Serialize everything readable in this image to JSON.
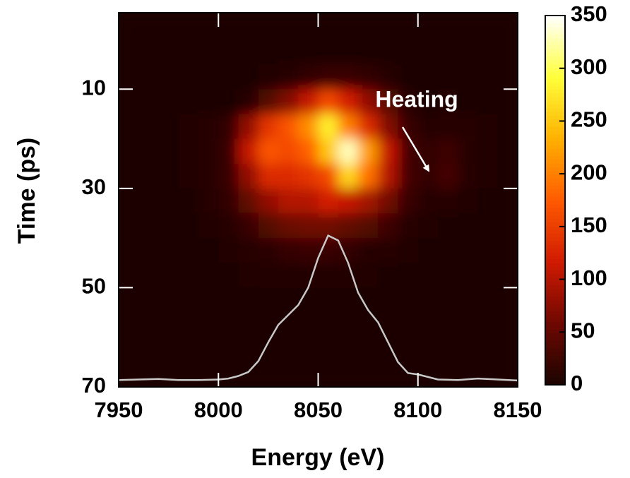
{
  "chart_data": {
    "type": "heatmap",
    "x_label": "Energy (eV)",
    "y_label": "Time (ps)",
    "annotation": "Heating",
    "xlim": [
      7950,
      8150
    ],
    "xticks": [
      7950,
      8000,
      8050,
      8100,
      8150
    ],
    "ylim": [
      -5.4,
      70
    ],
    "y_inverted": true,
    "yticks": [
      10,
      30,
      50,
      70
    ],
    "zlim": [
      0,
      350
    ],
    "zticks": [
      0,
      50,
      100,
      150,
      200,
      250,
      300,
      350
    ],
    "colors": [
      "#1a0400",
      "#6e0800",
      "#d01a00",
      "#ff5a00",
      "#ffb000",
      "#ffff3a",
      "#ffffff"
    ],
    "x_bins": [
      7950,
      7960,
      7970,
      7980,
      7990,
      8000,
      8010,
      8020,
      8030,
      8040,
      8050,
      8060,
      8070,
      8080,
      8090,
      8100,
      8110,
      8120,
      8130,
      8140,
      8150
    ],
    "y_bins": [
      -5,
      0,
      5,
      10,
      15,
      20,
      25,
      30,
      35,
      40,
      45,
      50,
      55,
      60,
      65,
      70
    ],
    "z": [
      [
        3,
        3,
        3,
        3,
        3,
        3,
        3,
        3,
        3,
        3,
        3,
        3,
        3,
        3,
        3,
        3,
        3,
        3,
        3,
        3
      ],
      [
        3,
        3,
        3,
        3,
        3,
        3,
        3,
        3,
        3,
        3,
        3,
        3,
        3,
        3,
        3,
        3,
        3,
        3,
        3,
        3
      ],
      [
        3,
        3,
        3,
        3,
        3,
        3,
        3,
        5,
        8,
        15,
        20,
        20,
        15,
        8,
        3,
        3,
        3,
        3,
        3,
        3
      ],
      [
        3,
        3,
        3,
        3,
        3,
        3,
        10,
        40,
        70,
        110,
        160,
        120,
        80,
        40,
        10,
        3,
        5,
        3,
        3,
        3
      ],
      [
        3,
        3,
        3,
        5,
        8,
        15,
        80,
        140,
        170,
        210,
        280,
        200,
        130,
        70,
        20,
        8,
        10,
        8,
        5,
        3
      ],
      [
        3,
        3,
        3,
        5,
        10,
        20,
        110,
        170,
        160,
        180,
        250,
        330,
        220,
        110,
        30,
        15,
        25,
        10,
        5,
        3
      ],
      [
        3,
        3,
        3,
        5,
        10,
        20,
        80,
        130,
        130,
        140,
        160,
        260,
        190,
        100,
        30,
        15,
        30,
        10,
        5,
        3
      ],
      [
        3,
        3,
        3,
        3,
        8,
        15,
        50,
        80,
        100,
        100,
        120,
        110,
        90,
        60,
        20,
        10,
        10,
        5,
        3,
        3
      ],
      [
        3,
        3,
        3,
        3,
        5,
        8,
        20,
        40,
        55,
        60,
        60,
        50,
        40,
        25,
        10,
        5,
        3,
        3,
        3,
        3
      ],
      [
        3,
        3,
        3,
        3,
        3,
        5,
        8,
        12,
        18,
        20,
        20,
        15,
        10,
        8,
        5,
        3,
        3,
        3,
        3,
        3
      ],
      [
        3,
        3,
        3,
        3,
        3,
        3,
        4,
        5,
        6,
        6,
        6,
        5,
        4,
        3,
        3,
        3,
        3,
        3,
        3,
        3
      ],
      [
        3,
        3,
        3,
        3,
        3,
        3,
        3,
        3,
        3,
        3,
        3,
        3,
        3,
        3,
        3,
        3,
        3,
        3,
        3,
        3
      ],
      [
        3,
        3,
        3,
        3,
        3,
        3,
        3,
        3,
        3,
        3,
        3,
        3,
        3,
        3,
        3,
        3,
        3,
        3,
        3,
        3
      ],
      [
        3,
        3,
        3,
        3,
        3,
        3,
        3,
        3,
        3,
        3,
        3,
        3,
        3,
        3,
        3,
        3,
        3,
        3,
        3,
        3
      ],
      [
        3,
        3,
        3,
        3,
        3,
        3,
        3,
        3,
        3,
        3,
        3,
        3,
        3,
        3,
        3,
        3,
        3,
        3,
        3,
        3
      ]
    ],
    "profile": {
      "color": "#c8c8c8",
      "x": [
        7950,
        7960,
        7970,
        7980,
        7990,
        8000,
        8005,
        8010,
        8015,
        8020,
        8025,
        8030,
        8035,
        8040,
        8045,
        8050,
        8055,
        8060,
        8065,
        8070,
        8075,
        8080,
        8085,
        8090,
        8095,
        8100,
        8105,
        8110,
        8120,
        8130,
        8140,
        8150
      ],
      "values": [
        68.6,
        68.5,
        68.4,
        68.6,
        68.6,
        68.5,
        68.3,
        67.8,
        67.0,
        64.8,
        61.0,
        57.5,
        55.5,
        53.5,
        50.0,
        44.0,
        39.5,
        40.5,
        45.0,
        51.0,
        54.5,
        57.0,
        61.0,
        65.0,
        67.2,
        67.5,
        68.0,
        68.5,
        68.6,
        68.3,
        68.5,
        68.7
      ]
    }
  }
}
